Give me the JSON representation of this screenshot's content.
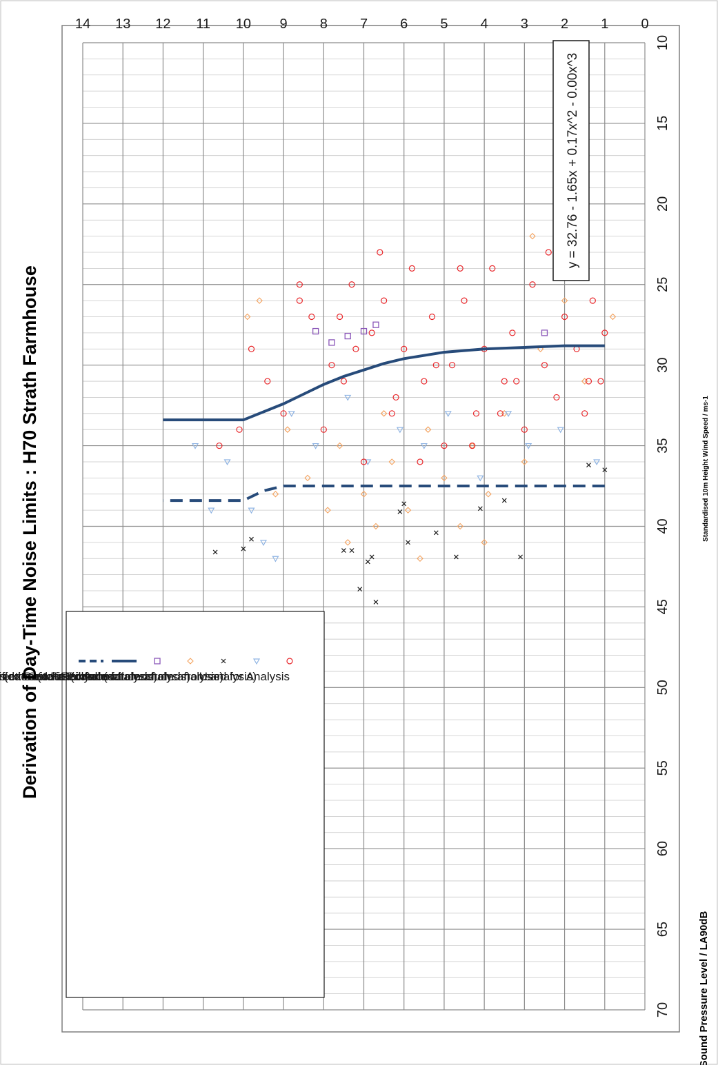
{
  "chart_data": {
    "type": "scatter",
    "title": "Derivation of Day-Time Noise Limits : H70 Strath Farmhouse",
    "xlabel": "Standardised 10m Height Wind Speed / ms-1",
    "ylabel": "Sound Pressure Level / LA90dB",
    "xlim": [
      0,
      14
    ],
    "ylim": [
      10,
      70
    ],
    "x_ticks": [
      "0",
      "1",
      "2",
      "3",
      "4",
      "5",
      "6",
      "7",
      "8",
      "9",
      "10",
      "11",
      "12",
      "13",
      "14"
    ],
    "y_ticks": [
      "10",
      "15",
      "20",
      "25",
      "30",
      "35",
      "40",
      "45",
      "50",
      "55",
      "60",
      "65",
      "70"
    ],
    "grid": true,
    "orientation": "rotated 90° counter-clockwise",
    "legend_position": "lower-left",
    "equation": "y = 32.76 - 1.65x + 0.17x^2 - 0.00x^3",
    "legend": [
      {
        "label": "Used for Analysis",
        "marker": "circle",
        "color": "#e8262a"
      },
      {
        "label": "Rainfall (data excluded from analysis)",
        "marker": "triangle",
        "color": "#8fb4e3"
      },
      {
        "label": "Inferred as extraneous (data excluded from analysis)",
        "marker": "x",
        "color": "#1a1a1a"
      },
      {
        "label": "Excluded Direction (data excluded from analysis)",
        "marker": "diamond",
        "color": "#f4a15c"
      },
      {
        "label": "Instrument Error (data excluded from analysis)",
        "marker": "square",
        "color": "#8a56b8"
      },
      {
        "label": "Modified Best Fit Polynomial",
        "marker": "line",
        "color": "#274b7a"
      },
      {
        "label": "Criteria Line",
        "marker": "dashed",
        "color": "#274b7a"
      }
    ],
    "series": [
      {
        "name": "Modified Best Fit Polynomial",
        "style": "solid",
        "color": "#274b7a",
        "x": [
          1,
          2,
          3,
          4,
          5,
          6,
          6.5,
          7,
          7.5,
          8,
          8.5,
          9,
          9.5,
          10,
          12
        ],
        "y": [
          28.8,
          28.8,
          28.9,
          29.0,
          29.2,
          29.6,
          29.9,
          30.3,
          30.7,
          31.2,
          31.8,
          32.4,
          32.9,
          33.4,
          33.4
        ]
      },
      {
        "name": "Criteria Line",
        "style": "dashed",
        "color": "#274b7a",
        "x": [
          1,
          2,
          3,
          4,
          5,
          6,
          7,
          8,
          9,
          9.5,
          10,
          12
        ],
        "y": [
          37.5,
          37.5,
          37.5,
          37.5,
          37.5,
          37.5,
          37.5,
          37.5,
          37.5,
          37.8,
          38.4,
          38.4
        ]
      },
      {
        "name": "Used for Analysis",
        "marker": "circle",
        "color": "#e8262a",
        "x": [
          1.0,
          1.1,
          1.3,
          1.5,
          1.7,
          2.0,
          2.2,
          2.5,
          2.8,
          3.0,
          3.3,
          3.5,
          3.8,
          4.0,
          4.2,
          4.5,
          4.8,
          5.0,
          5.3,
          5.5,
          5.8,
          6.0,
          6.3,
          6.5,
          6.8,
          7.0,
          7.3,
          7.5,
          7.8,
          8.0,
          8.3,
          8.6,
          9.0,
          9.4,
          9.8,
          10.1,
          10.6,
          1.4,
          2.4,
          3.6,
          4.6,
          5.6,
          6.6,
          7.6,
          8.6,
          3.2,
          4.3,
          5.2,
          6.2,
          7.2
        ],
        "y": [
          28,
          31,
          26,
          33,
          29,
          27,
          32,
          30,
          25,
          34,
          28,
          31,
          24,
          29,
          33,
          26,
          30,
          35,
          27,
          31,
          24,
          29,
          33,
          26,
          28,
          36,
          25,
          31,
          30,
          34,
          27,
          26,
          33,
          31,
          29,
          34,
          35,
          31,
          23,
          33,
          24,
          36,
          23,
          27,
          25,
          31,
          35,
          30,
          32,
          29
        ]
      },
      {
        "name": "Rainfall (data excluded from analysis)",
        "marker": "triangle",
        "color": "#8fb4e3",
        "x": [
          1.2,
          2.1,
          2.9,
          3.4,
          4.1,
          4.9,
          5.5,
          6.1,
          6.9,
          7.4,
          8.2,
          8.8,
          9.2,
          9.5,
          9.8,
          10.4,
          10.8,
          11.2
        ],
        "y": [
          36,
          34,
          35,
          33,
          37,
          33,
          35,
          34,
          36,
          32,
          35,
          33,
          42,
          41,
          39,
          36,
          39,
          35
        ]
      },
      {
        "name": "Inferred as extraneous (data excluded from analysis)",
        "marker": "x",
        "color": "#1a1a1a",
        "x": [
          1.0,
          1.4,
          3.1,
          3.5,
          4.1,
          4.7,
          5.2,
          5.9,
          6.0,
          6.1,
          6.7,
          6.8,
          6.9,
          7.1,
          7.3,
          7.5,
          9.8,
          10.0,
          10.7
        ],
        "y": [
          36.5,
          36.2,
          41.9,
          38.4,
          38.9,
          41.9,
          40.4,
          41.0,
          38.6,
          39.1,
          44.7,
          41.9,
          42.2,
          43.9,
          41.5,
          41.5,
          40.8,
          41.4,
          41.6
        ]
      },
      {
        "name": "Excluded Direction (data excluded from analysis)",
        "marker": "diamond",
        "color": "#f4a15c",
        "x": [
          0.8,
          1.5,
          2.0,
          2.6,
          3.0,
          3.5,
          3.9,
          4.3,
          4.6,
          5.0,
          5.4,
          5.9,
          6.3,
          6.7,
          7.0,
          7.4,
          7.9,
          8.4,
          8.9,
          9.2,
          9.6,
          9.9,
          2.8,
          4.0,
          5.6,
          6.5,
          7.6
        ],
        "y": [
          27,
          31,
          26,
          29,
          36,
          33,
          38,
          35,
          40,
          37,
          34,
          39,
          36,
          40,
          38,
          41,
          39,
          37,
          34,
          38,
          26,
          27,
          22,
          41,
          42,
          33,
          35
        ]
      },
      {
        "name": "Instrument Error (data excluded from analysis)",
        "marker": "square",
        "color": "#8a56b8",
        "x": [
          2.5,
          6.7,
          7.0,
          7.4,
          7.8,
          8.2
        ],
        "y": [
          28.0,
          27.5,
          27.9,
          28.2,
          28.6,
          27.9
        ]
      }
    ]
  }
}
